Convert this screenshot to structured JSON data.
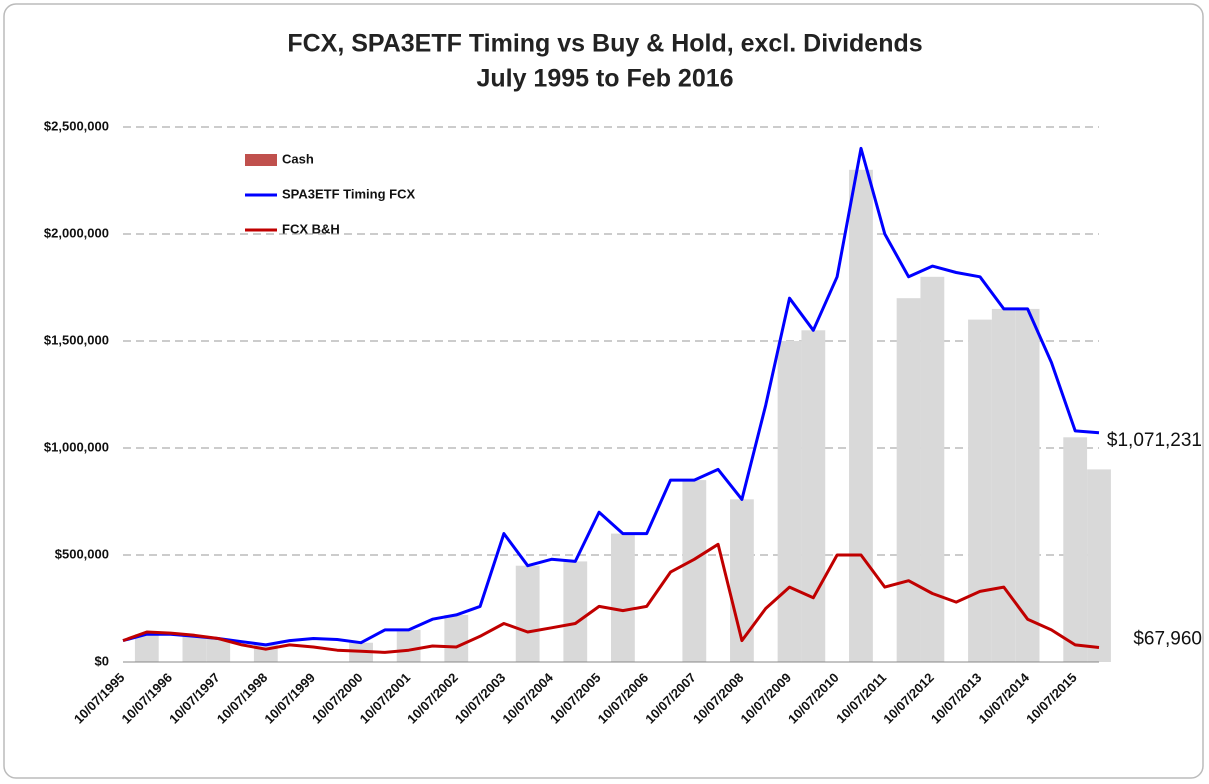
{
  "chart_data": {
    "type": "line",
    "title": [
      "FCX, SPA3ETF Timing vs Buy & Hold, excl. Dividends",
      "July 1995 to Feb 2016"
    ],
    "categories": [
      "10/07/1995",
      null,
      "10/07/1996",
      null,
      "10/07/1997",
      null,
      "10/07/1998",
      null,
      "10/07/1999",
      null,
      "10/07/2000",
      null,
      "10/07/2001",
      null,
      "10/07/2002",
      null,
      "10/07/2003",
      null,
      "10/07/2004",
      null,
      "10/07/2005",
      null,
      "10/07/2006",
      null,
      "10/07/2007",
      null,
      "10/07/2008",
      null,
      "10/07/2009",
      null,
      "10/07/2010",
      null,
      "10/07/2011",
      null,
      "10/07/2012",
      null,
      "10/07/2013",
      null,
      "10/07/2014",
      null,
      "10/07/2015",
      null
    ],
    "series": [
      {
        "name": "Cash",
        "type": "bar",
        "color": "#d9d9d9",
        "legend_color": "#c0504d",
        "values": [
          0,
          130000,
          0,
          120000,
          110000,
          0,
          80000,
          0,
          0,
          0,
          90000,
          0,
          150000,
          0,
          220000,
          0,
          0,
          450000,
          0,
          470000,
          0,
          600000,
          0,
          0,
          850000,
          0,
          760000,
          0,
          1500000,
          1550000,
          0,
          2300000,
          0,
          1700000,
          1800000,
          0,
          1600000,
          1650000,
          1650000,
          0,
          1050000,
          900000
        ]
      },
      {
        "name": "SPA3ETF Timing FCX",
        "color": "#0000ff",
        "values": [
          100000,
          130000,
          130000,
          120000,
          110000,
          95000,
          80000,
          100000,
          110000,
          105000,
          90000,
          150000,
          150000,
          200000,
          220000,
          260000,
          600000,
          450000,
          480000,
          470000,
          700000,
          600000,
          600000,
          850000,
          850000,
          900000,
          760000,
          1200000,
          1700000,
          1550000,
          1800000,
          2400000,
          2000000,
          1800000,
          1850000,
          1820000,
          1800000,
          1650000,
          1650000,
          1400000,
          1080000,
          1071231
        ]
      },
      {
        "name": "FCX B&H",
        "color": "#c00000",
        "values": [
          100000,
          140000,
          135000,
          125000,
          110000,
          80000,
          60000,
          80000,
          70000,
          55000,
          50000,
          45000,
          55000,
          75000,
          70000,
          120000,
          180000,
          140000,
          160000,
          180000,
          260000,
          240000,
          260000,
          420000,
          480000,
          550000,
          100000,
          250000,
          350000,
          300000,
          500000,
          500000,
          350000,
          380000,
          320000,
          280000,
          330000,
          350000,
          200000,
          150000,
          80000,
          67960
        ]
      }
    ],
    "annotations": [
      {
        "text": "$1,071,231",
        "value": 1071231
      },
      {
        "text": "$67,960",
        "value": 67960
      }
    ],
    "ylim": [
      0,
      2500000
    ],
    "yticks": [
      {
        "value": 0,
        "label": "$0"
      },
      {
        "value": 500000,
        "label": "$500,000"
      },
      {
        "value": 1000000,
        "label": "$1,000,000"
      },
      {
        "value": 1500000,
        "label": "$1,500,000"
      },
      {
        "value": 2000000,
        "label": "$2,000,000"
      },
      {
        "value": 2500000,
        "label": "$2,500,000"
      }
    ],
    "grid": true
  }
}
